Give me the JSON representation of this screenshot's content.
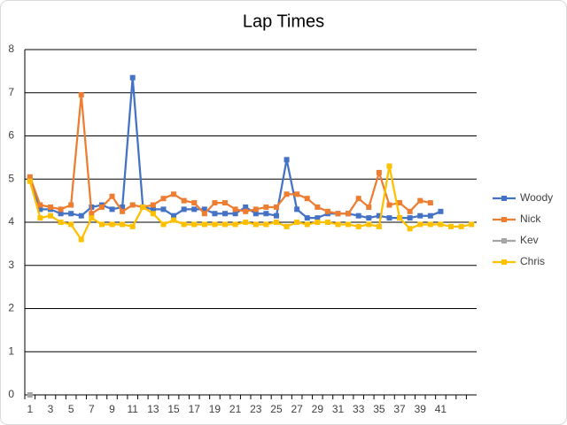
{
  "chart_data": {
    "type": "line",
    "title": "Lap Times",
    "categories": [
      1,
      null,
      3,
      null,
      5,
      null,
      7,
      null,
      9,
      null,
      11,
      null,
      13,
      null,
      15,
      null,
      17,
      null,
      19,
      null,
      21,
      null,
      23,
      null,
      25,
      null,
      27,
      null,
      29,
      null,
      31,
      null,
      33,
      null,
      35,
      null,
      37,
      null,
      39,
      null,
      41,
      null,
      null,
      null
    ],
    "series": [
      {
        "name": "Woody",
        "color": "#4472c4",
        "values": [
          5.0,
          4.3,
          4.3,
          4.2,
          4.2,
          4.15,
          4.35,
          4.4,
          4.3,
          4.35,
          7.35,
          4.35,
          4.3,
          4.3,
          4.15,
          4.3,
          4.3,
          4.3,
          4.2,
          4.2,
          4.2,
          4.35,
          4.2,
          4.2,
          4.15,
          5.45,
          4.3,
          4.1,
          4.1,
          4.2,
          4.2,
          4.2,
          4.15,
          4.1,
          4.15,
          4.1,
          4.1,
          4.1,
          4.15,
          4.15,
          4.25,
          null,
          null,
          null
        ]
      },
      {
        "name": "Nick",
        "color": "#ed7d31",
        "values": [
          5.05,
          4.4,
          4.35,
          4.3,
          4.4,
          6.95,
          4.2,
          4.35,
          4.6,
          4.25,
          4.4,
          4.35,
          4.4,
          4.55,
          4.65,
          4.5,
          4.45,
          4.2,
          4.45,
          4.45,
          4.3,
          4.25,
          4.3,
          4.35,
          4.35,
          4.65,
          4.65,
          4.55,
          4.35,
          4.25,
          4.2,
          4.2,
          4.55,
          4.35,
          5.15,
          4.4,
          4.45,
          4.25,
          4.5,
          4.45,
          null,
          null,
          null,
          null
        ]
      },
      {
        "name": "Kev",
        "color": "#a5a5a5",
        "values": [
          0,
          null,
          null,
          null,
          null,
          null,
          null,
          null,
          null,
          null,
          null,
          null,
          null,
          null,
          null,
          null,
          null,
          null,
          null,
          null,
          null,
          null,
          null,
          null,
          null,
          null,
          null,
          null,
          null,
          null,
          null,
          null,
          null,
          null,
          null,
          null,
          null,
          null,
          null,
          null,
          null,
          null,
          null,
          null
        ]
      },
      {
        "name": "Chris",
        "color": "#ffc000",
        "values": [
          4.95,
          4.1,
          4.15,
          4.0,
          3.95,
          3.6,
          4.1,
          3.95,
          3.95,
          3.95,
          3.9,
          4.35,
          4.2,
          3.95,
          4.05,
          3.95,
          3.95,
          3.95,
          3.95,
          3.95,
          3.95,
          4.0,
          3.95,
          3.95,
          4.0,
          3.9,
          4.0,
          3.95,
          4.0,
          4.0,
          3.95,
          3.95,
          3.9,
          3.95,
          3.9,
          5.3,
          4.1,
          3.85,
          3.95,
          3.95,
          3.95,
          3.9,
          3.9,
          3.95
        ]
      }
    ],
    "ylim": [
      0,
      8
    ],
    "yticks": [
      0,
      1,
      2,
      3,
      4,
      5,
      6,
      7,
      8
    ],
    "grid": true,
    "legend": "right"
  }
}
